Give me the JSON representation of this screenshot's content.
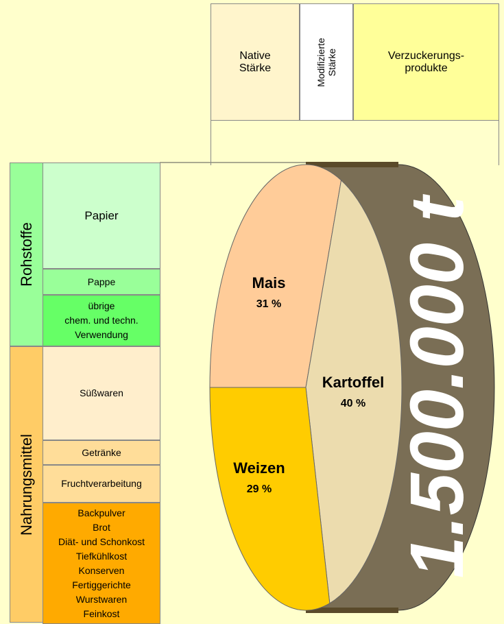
{
  "top_boxes": [
    {
      "lines": [
        "Native",
        "Stärke"
      ]
    },
    {
      "lines": [
        "Modifizierte",
        "Stärke"
      ]
    },
    {
      "lines": [
        "Verzuckerungs-",
        "produkte"
      ]
    }
  ],
  "groups": [
    {
      "label": "Rohstoffe",
      "items": [
        {
          "lines": [
            "Papier"
          ]
        },
        {
          "lines": [
            "Pappe"
          ]
        },
        {
          "lines": [
            "übrige",
            "chem. und techn.",
            "Verwendung"
          ]
        }
      ]
    },
    {
      "label": "Nahrungsmittel",
      "items": [
        {
          "lines": [
            "Süßwaren"
          ]
        },
        {
          "lines": [
            "Getränke"
          ]
        },
        {
          "lines": [
            "Fruchtverarbeitung"
          ]
        },
        {
          "lines": [
            "Backpulver",
            "Brot",
            "Diät- und Schonkost",
            "Tiefkühlkost",
            "Konserven",
            "Fertiggerichte",
            "Wurstwaren",
            "Feinkost"
          ]
        }
      ]
    }
  ],
  "pie": {
    "total_label": "1.500.000 t",
    "slices": [
      {
        "name": "Mais",
        "value": 31,
        "value_label": "31 %",
        "color": "#ffcc99"
      },
      {
        "name": "Kartoffel",
        "value": 40,
        "value_label": "40 %",
        "color": "#ecdcae"
      },
      {
        "name": "Weizen",
        "value": 29,
        "value_label": "29 %",
        "color": "#ffcc00"
      }
    ]
  }
}
